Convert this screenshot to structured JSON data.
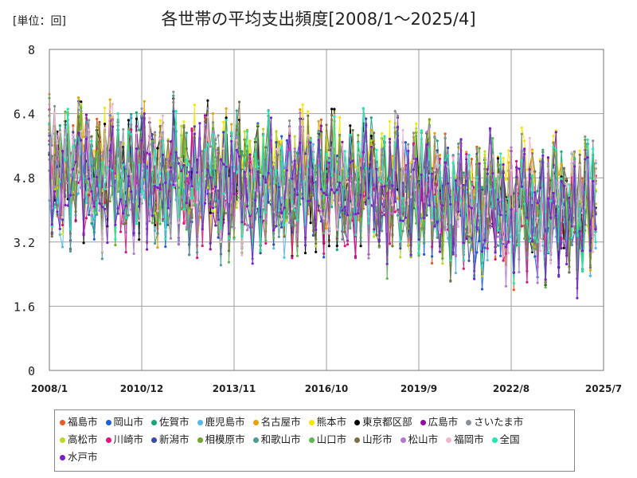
{
  "unit": "[単位：回]",
  "chart_data": {
    "type": "line",
    "title": "各世帯の平均支出頻度[2008/1～2025/4]",
    "xlabel": "",
    "ylabel": "",
    "ylim": [
      0,
      8
    ],
    "yticks": [
      "0",
      "1.6",
      "3.2",
      "4.8",
      "6.4",
      "8"
    ],
    "xticks": [
      "2008/1",
      "2010/12",
      "2013/11",
      "2016/10",
      "2019/9",
      "2022/8",
      "2025/7"
    ],
    "grid": true,
    "legend_position": "bottom",
    "series": [
      {
        "name": "福島市",
        "color": "#ed5a1e",
        "base": 4.3
      },
      {
        "name": "岡山市",
        "color": "#1a5fe0",
        "base": 4.2
      },
      {
        "name": "佐賀市",
        "color": "#19a57a",
        "base": 4.4
      },
      {
        "name": "鹿児島市",
        "color": "#56b9e8",
        "base": 4.1
      },
      {
        "name": "名古屋市",
        "color": "#e8a008",
        "base": 4.4
      },
      {
        "name": "熊本市",
        "color": "#f2e800",
        "base": 4.5
      },
      {
        "name": "東京都区部",
        "color": "#000000",
        "base": 4.3
      },
      {
        "name": "広島市",
        "color": "#8e0fa2",
        "base": 4.3
      },
      {
        "name": "さいたま市",
        "color": "#8a8f96",
        "base": 4.4
      },
      {
        "name": "高松市",
        "color": "#b6dc26",
        "base": 4.3
      },
      {
        "name": "川崎市",
        "color": "#e3127f",
        "base": 4.1
      },
      {
        "name": "新潟市",
        "color": "#3e4aa8",
        "base": 4.2
      },
      {
        "name": "相模原市",
        "color": "#6fa52a",
        "base": 4.3
      },
      {
        "name": "和歌山市",
        "color": "#4f9a94",
        "base": 4.1
      },
      {
        "name": "山口市",
        "color": "#5cb84e",
        "base": 4.2
      },
      {
        "name": "山形市",
        "color": "#7a7148",
        "base": 4.4
      },
      {
        "name": "松山市",
        "color": "#b17bd0",
        "base": 4.2
      },
      {
        "name": "福岡市",
        "color": "#f0b6d0",
        "base": 4.3
      },
      {
        "name": "全国",
        "color": "#1ee8b0",
        "base": 4.3
      },
      {
        "name": "水戸市",
        "color": "#7a1fd0",
        "base": 4.2
      }
    ]
  }
}
